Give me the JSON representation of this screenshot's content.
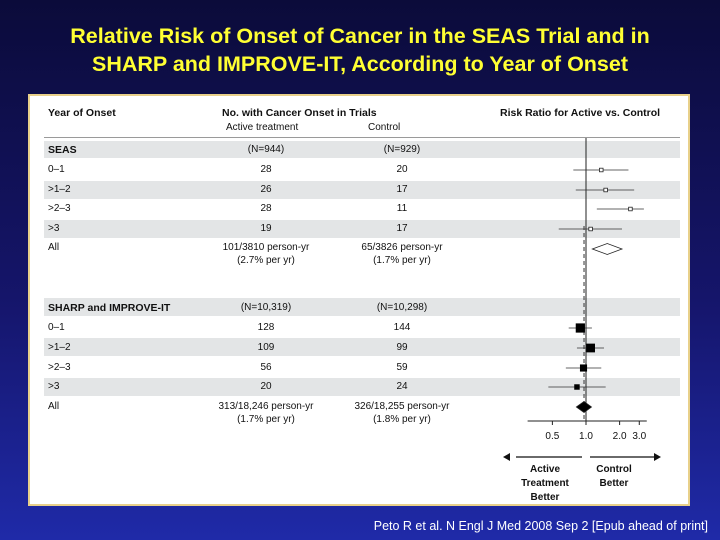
{
  "slide": {
    "title_line1": "Relative Risk of Onset of Cancer in the SEAS Trial and in",
    "title_line2": "SHARP and IMPROVE-IT, According to Year of Onset",
    "citation": "Peto R et al. N Engl J Med 2008 Sep 2 [Epub ahead of print]",
    "title_color": "#ffff33"
  },
  "table": {
    "col_year": "Year of Onset",
    "col_trials": "No. with Cancer Onset in Trials",
    "col_active": "Active treatment",
    "col_control": "Control",
    "col_rr": "Risk Ratio for Active vs. Control",
    "groups": [
      {
        "name": "SEAS",
        "active_n": "(N=944)",
        "control_n": "(N=929)",
        "rows": [
          {
            "label": "0–1",
            "active": "28",
            "control": "20"
          },
          {
            "label": ">1–2",
            "active": "26",
            "control": "17"
          },
          {
            "label": ">2–3",
            "active": "28",
            "control": "11"
          },
          {
            "label": ">3",
            "active": "19",
            "control": "17"
          }
        ],
        "all": {
          "label": "All",
          "active_line1": "101/3810 person-yr",
          "active_line2": "(2.7% per yr)",
          "control_line1": "65/3826 person-yr",
          "control_line2": "(1.7% per yr)"
        }
      },
      {
        "name": "SHARP and IMPROVE-IT",
        "active_n": "(N=10,319)",
        "control_n": "(N=10,298)",
        "rows": [
          {
            "label": "0–1",
            "active": "128",
            "control": "144"
          },
          {
            "label": ">1–2",
            "active": "109",
            "control": "99"
          },
          {
            "label": ">2–3",
            "active": "56",
            "control": "59"
          },
          {
            "label": ">3",
            "active": "20",
            "control": "24"
          }
        ],
        "all": {
          "label": "All",
          "active_line1": "313/18,246 person-yr",
          "active_line2": "(1.7% per yr)",
          "control_line1": "326/18,255 person-yr",
          "control_line2": "(1.8% per yr)"
        }
      }
    ]
  },
  "chart_data": {
    "type": "scatter",
    "subtype": "forest plot",
    "scale": "log",
    "xlim": [
      0.3,
      3.5
    ],
    "ticks": [
      {
        "value": 0.5,
        "label": "0.5"
      },
      {
        "value": 1.0,
        "label": "1.0"
      },
      {
        "value": 2.0,
        "label": "2.0"
      },
      {
        "value": 3.0,
        "label": "3.0"
      }
    ],
    "reference_line": 1.0,
    "summary_dashed_at": "SHARP and IMPROVE-IT overall estimate",
    "left_direction": [
      "Active",
      "Treatment",
      "Better"
    ],
    "right_direction": [
      "Control",
      "Better"
    ],
    "series": [
      {
        "name": "SEAS",
        "marker": "open",
        "points": [
          {
            "row": "0–1",
            "rr": 1.37,
            "ci": [
              0.77,
              2.4
            ]
          },
          {
            "row": ">1–2",
            "rr": 1.5,
            "ci": [
              0.81,
              2.7
            ]
          },
          {
            "row": ">2–3",
            "rr": 2.5,
            "ci": [
              1.25,
              3.3
            ]
          },
          {
            "row": ">3",
            "rr": 1.1,
            "ci": [
              0.57,
              2.1
            ]
          }
        ],
        "overall": {
          "rr": 1.55,
          "ci": [
            1.14,
            2.1
          ]
        }
      },
      {
        "name": "SHARP and IMPROVE-IT",
        "marker": "filled",
        "points": [
          {
            "row": "0–1",
            "rr": 0.89,
            "ci": [
              0.7,
              1.13
            ],
            "size": 128
          },
          {
            "row": ">1–2",
            "rr": 1.1,
            "ci": [
              0.83,
              1.45
            ],
            "size": 109
          },
          {
            "row": ">2–3",
            "rr": 0.95,
            "ci": [
              0.66,
              1.37
            ],
            "size": 56
          },
          {
            "row": ">3",
            "rr": 0.83,
            "ci": [
              0.46,
              1.5
            ],
            "size": 20
          }
        ],
        "overall": {
          "rr": 0.96,
          "ci": [
            0.82,
            1.12
          ]
        }
      }
    ]
  }
}
